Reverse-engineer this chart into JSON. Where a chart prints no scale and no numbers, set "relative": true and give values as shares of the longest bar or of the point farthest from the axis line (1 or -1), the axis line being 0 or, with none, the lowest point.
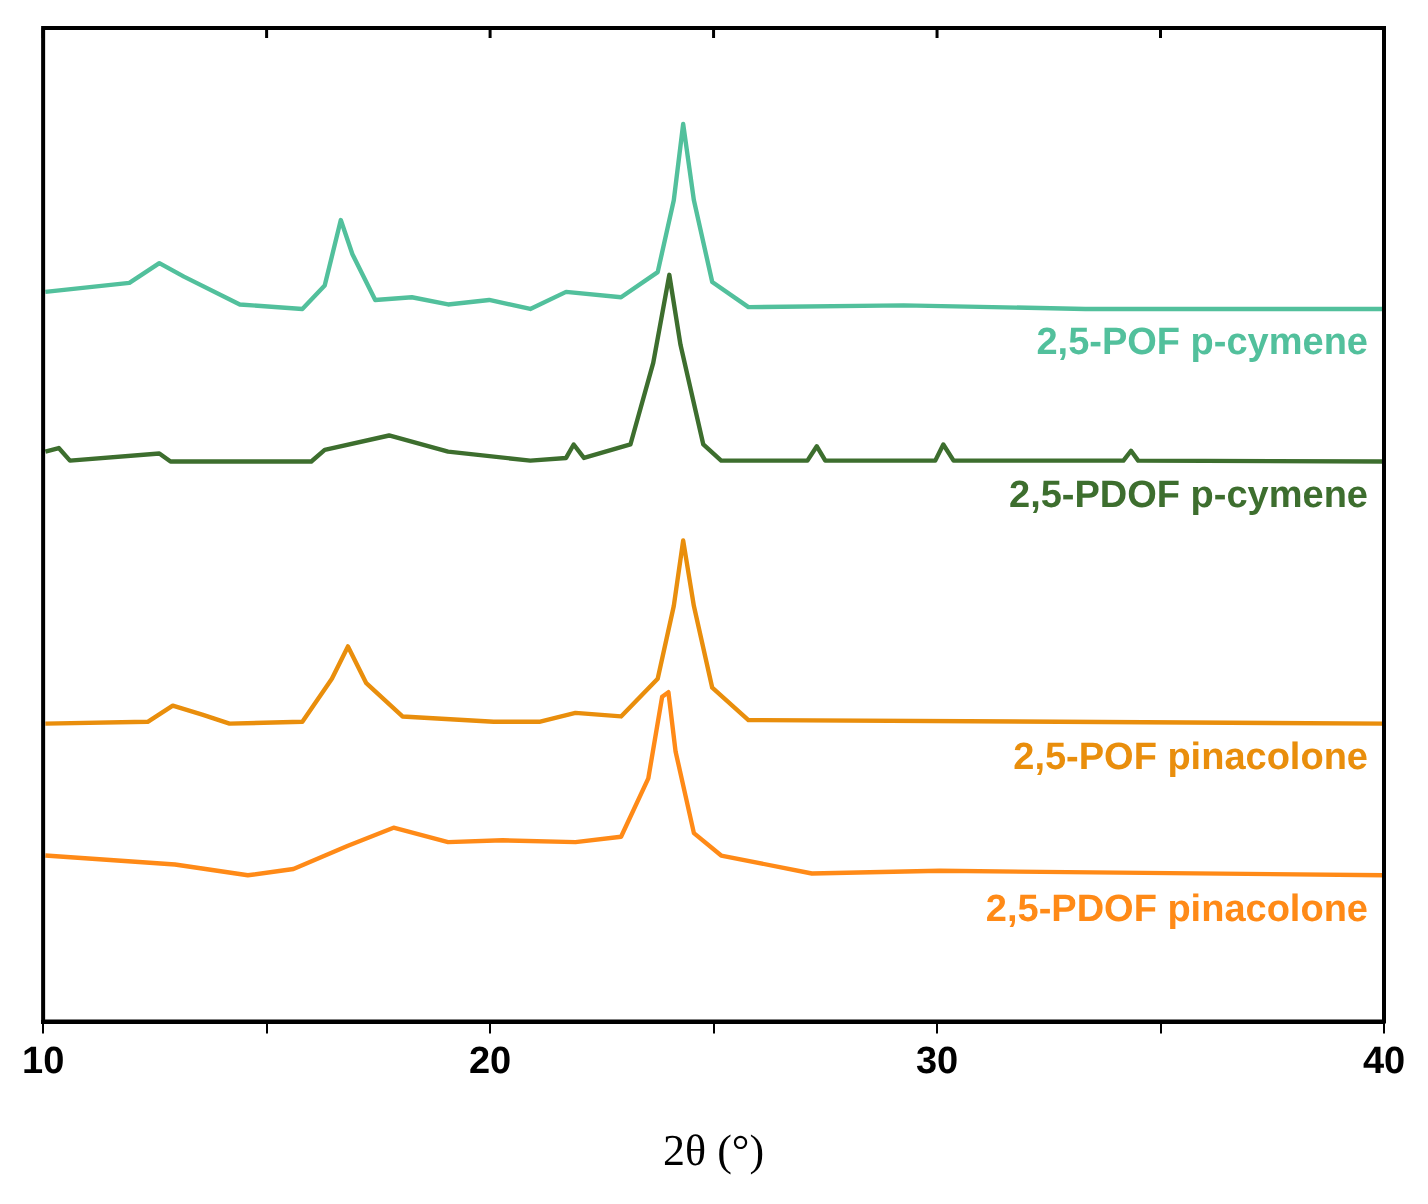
{
  "chart_data": {
    "type": "line",
    "relative": true,
    "xlabel": "2θ (°)",
    "xlim": [
      10,
      40
    ],
    "xticks": [
      10,
      {
        "value": 15,
        "label": null
      },
      20,
      {
        "value": 25,
        "label": null
      },
      30,
      {
        "value": 35,
        "label": null
      },
      40
    ],
    "tick_labels": "x",
    "grid": false,
    "legend": false,
    "marker": "none",
    "line_style": "solid",
    "series": [
      {
        "name": "2,5-POF p-cymene",
        "color": "#52c09c",
        "x": [
          10.05,
          11.93,
          12.6,
          13.15,
          14.4,
          15.8,
          16.3,
          16.66,
          16.92,
          17.43,
          18.25,
          19.06,
          19.98,
          20.9,
          21.7,
          22.93,
          23.75,
          24.11,
          24.32,
          24.56,
          24.97,
          25.78,
          29.25,
          33.32,
          40
        ],
        "values": [
          0.813,
          0.823,
          0.845,
          0.83,
          0.799,
          0.794,
          0.82,
          0.893,
          0.855,
          0.804,
          0.807,
          0.799,
          0.804,
          0.794,
          0.813,
          0.807,
          0.835,
          0.915,
          1,
          0.915,
          0.824,
          0.796,
          0.798,
          0.794,
          0.794
        ]
      },
      {
        "name": "2,5-PDOF p-cymene",
        "color": "#3d6e2e",
        "x": [
          10.05,
          10.35,
          10.6,
          12.6,
          12.85,
          16.0,
          16.3,
          17.74,
          19.06,
          20.9,
          21.7,
          21.87,
          22.1,
          23.14,
          23.65,
          24.01,
          24.26,
          24.77,
          25.17,
          27.1,
          27.31,
          27.5,
          29.96,
          30.14,
          30.37,
          34.17,
          34.34,
          34.5,
          40
        ],
        "values": [
          0.635,
          0.639,
          0.625,
          0.633,
          0.624,
          0.624,
          0.637,
          0.653,
          0.635,
          0.625,
          0.628,
          0.643,
          0.628,
          0.643,
          0.734,
          0.832,
          0.754,
          0.643,
          0.625,
          0.625,
          0.641,
          0.625,
          0.625,
          0.643,
          0.625,
          0.625,
          0.636,
          0.625,
          0.624
        ]
      },
      {
        "name": "2,5-POF pinacolone",
        "color": "#e98e0c",
        "x": [
          10.05,
          12.34,
          12.9,
          13.56,
          14.17,
          15.8,
          16.46,
          16.82,
          17.23,
          18.04,
          20.08,
          21.1,
          21.91,
          22.93,
          23.75,
          24.11,
          24.32,
          24.56,
          24.97,
          25.78,
          40
        ],
        "values": [
          0.332,
          0.334,
          0.352,
          0.342,
          0.332,
          0.334,
          0.382,
          0.418,
          0.377,
          0.34,
          0.334,
          0.334,
          0.344,
          0.34,
          0.382,
          0.463,
          0.536,
          0.463,
          0.372,
          0.336,
          0.332
        ]
      },
      {
        "name": "2,5-PDOF pinacolone",
        "color": "#ff8a17",
        "x": [
          10.05,
          12.95,
          14.58,
          15.6,
          16.82,
          17.84,
          19.06,
          20.28,
          21.91,
          22.93,
          23.54,
          23.85,
          23.99,
          24.15,
          24.56,
          25.17,
          27.2,
          30.06,
          40
        ],
        "values": [
          0.185,
          0.175,
          0.163,
          0.17,
          0.196,
          0.216,
          0.2,
          0.202,
          0.2,
          0.206,
          0.271,
          0.362,
          0.367,
          0.301,
          0.21,
          0.185,
          0.165,
          0.168,
          0.163
        ]
      }
    ]
  }
}
